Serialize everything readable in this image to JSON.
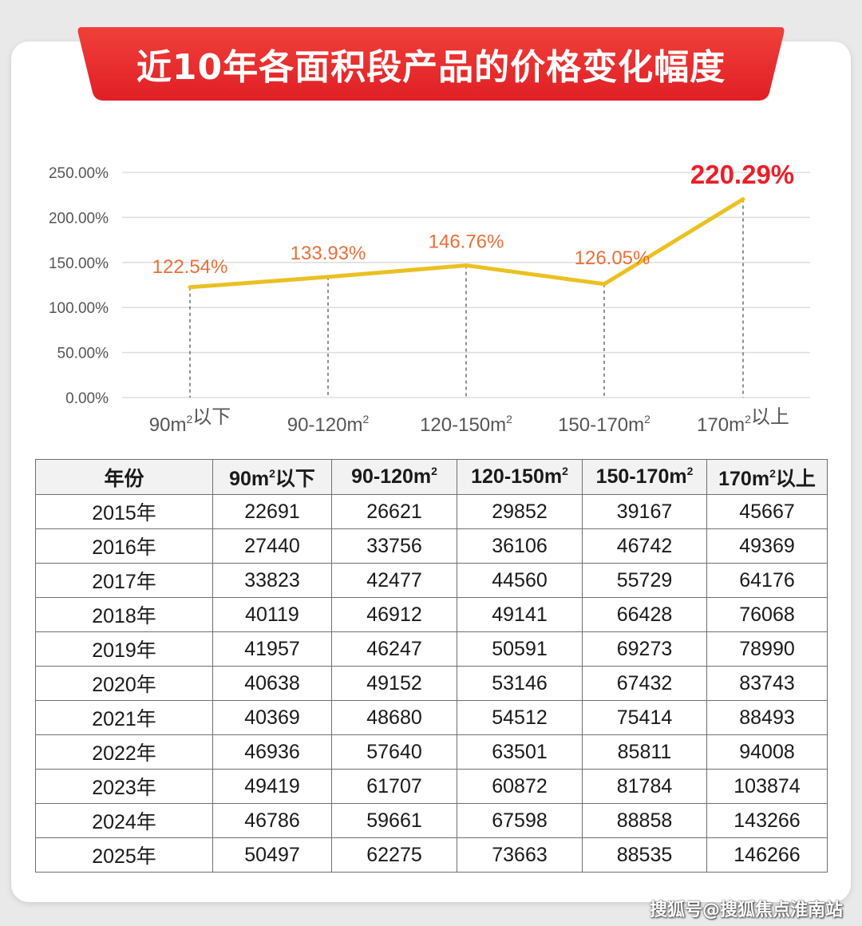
{
  "title": "近10年各面积段产品的价格变化幅度",
  "colors": {
    "banner": "#e8282b",
    "line": "#eac122",
    "point_label": "#e8703a",
    "max_label": "#e8202a",
    "grid": "#dddddd",
    "axis_text": "#555555"
  },
  "chart_data": {
    "type": "line",
    "categories": [
      "90m²以下",
      "90-120m²",
      "120-150m²",
      "150-170m²",
      "170m²以上"
    ],
    "values": [
      122.54,
      133.93,
      146.76,
      126.05,
      220.29
    ],
    "value_labels": [
      "122.54%",
      "133.93%",
      "146.76%",
      "126.05%",
      "220.29%"
    ],
    "y_ticks": [
      "0.00%",
      "50.00%",
      "100.00%",
      "150.00%",
      "200.00%",
      "250.00%"
    ],
    "ylim": [
      0,
      250
    ],
    "grid": true,
    "legend": "none"
  },
  "table": {
    "headers": [
      "年份",
      "90m²以下",
      "90-120m²",
      "120-150m²",
      "150-170m²",
      "170m²以上"
    ],
    "rows": [
      [
        "2015年",
        "22691",
        "26621",
        "29852",
        "39167",
        "45667"
      ],
      [
        "2016年",
        "27440",
        "33756",
        "36106",
        "46742",
        "49369"
      ],
      [
        "2017年",
        "33823",
        "42477",
        "44560",
        "55729",
        "64176"
      ],
      [
        "2018年",
        "40119",
        "46912",
        "49141",
        "66428",
        "76068"
      ],
      [
        "2019年",
        "41957",
        "46247",
        "50591",
        "69273",
        "78990"
      ],
      [
        "2020年",
        "40638",
        "49152",
        "53146",
        "67432",
        "83743"
      ],
      [
        "2021年",
        "40369",
        "48680",
        "54512",
        "75414",
        "88493"
      ],
      [
        "2022年",
        "46936",
        "57640",
        "63501",
        "85811",
        "94008"
      ],
      [
        "2023年",
        "49419",
        "61707",
        "60872",
        "81784",
        "103874"
      ],
      [
        "2024年",
        "46786",
        "59661",
        "67598",
        "88858",
        "143266"
      ],
      [
        "2025年",
        "50497",
        "62275",
        "73663",
        "88535",
        "146266"
      ]
    ]
  },
  "watermark": "搜狐号@搜狐焦点淮南站"
}
